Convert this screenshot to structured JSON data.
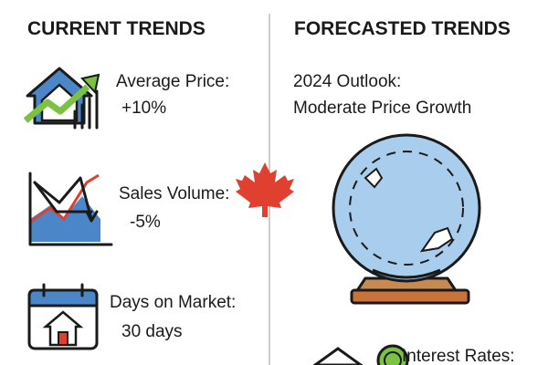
{
  "left": {
    "title": "CURRENT TRENDS",
    "items": [
      {
        "label": "Average Price:",
        "value": "+10%"
      },
      {
        "label": "Sales Volume:",
        "value": "-5%"
      },
      {
        "label": "Days on Market:",
        "value": "30 days"
      }
    ]
  },
  "right": {
    "title": "FORECASTED TRENDS",
    "outlook": [
      "2024 Outlook:",
      "Moderate Price Growth"
    ],
    "items": [
      {
        "label": "Interest Rates:"
      }
    ]
  }
}
